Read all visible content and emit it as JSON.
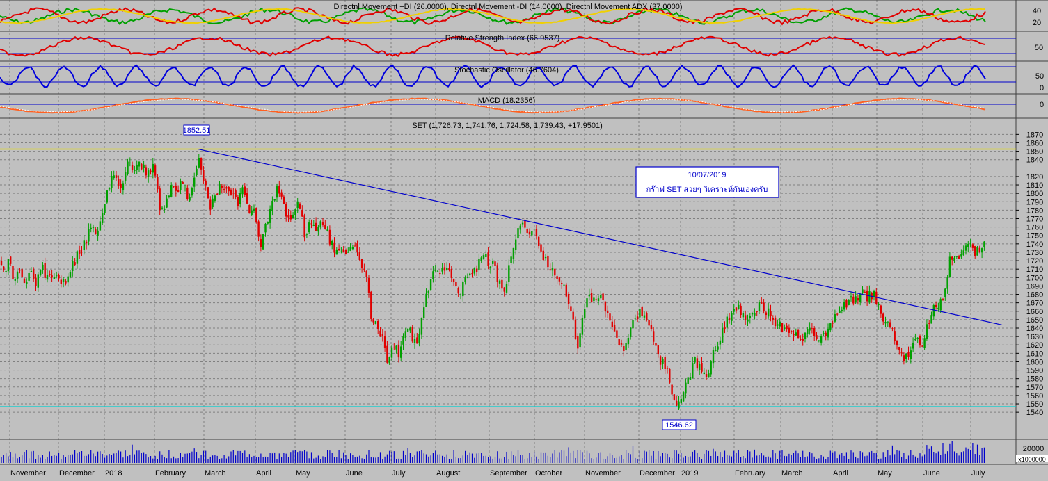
{
  "colors": {
    "background": "#c0c0c0",
    "grid": "#808080",
    "candle_up": "#00a000",
    "candle_down": "#e00000",
    "trendline": "#0000cc",
    "hline_yellow": "#e8e000",
    "hline_cyan": "#00d0d0",
    "plus_di": "#00a000",
    "minus_di": "#e00000",
    "adx": "#f0d000",
    "rsi": "#e00000",
    "stoch": "#0000dd",
    "macd": "#ff6020",
    "signal": "#ffffff",
    "volume": "#0000cc"
  },
  "panels": {
    "dmi": {
      "title": "Directnl Movement +DI (26.0000), Directnl Movement -DI (14.0000), Directnl Movement ADX (37.0000)",
      "ticks": [
        "40",
        "20"
      ]
    },
    "rsi": {
      "title": "Relative Strength Index (66.9537)",
      "ticks": [
        "50"
      ]
    },
    "stoch": {
      "title": "Stochastic Oscillator (46.7604)",
      "ticks": [
        "50",
        "0"
      ]
    },
    "macd": {
      "title": "MACD (18.2356)",
      "ticks": [
        "0"
      ]
    },
    "price": {
      "title": "SET (1,726.73, 1,741.76, 1,724.58, 1,739.43, +17.9501)"
    },
    "volume": {
      "ticks": [
        "20000"
      ],
      "unit": "x1000000"
    }
  },
  "labels": {
    "high": "1852.51",
    "low": "1546.62",
    "note_date": "10/07/2019",
    "note_text": "กร๊าฟ SET สวยๆ วิเคราะห์กันเองครับ"
  },
  "months": [
    "November",
    "December",
    "2018",
    "February",
    "March",
    "April",
    "May",
    "June",
    "July",
    "August",
    "September",
    "October",
    "November",
    "December",
    "2019",
    "February",
    "March",
    "April",
    "May",
    "June",
    "July"
  ],
  "chart_data": {
    "type": "candlestick",
    "title": "SET (1,726.73, 1,741.76, 1,724.58, 1,739.43, +17.9501)",
    "x_labels": [
      "November",
      "December",
      "2018",
      "February",
      "March",
      "April",
      "May",
      "June",
      "July",
      "August",
      "September",
      "October",
      "November",
      "December",
      "2019",
      "February",
      "March",
      "April",
      "May",
      "June",
      "July"
    ],
    "ylim": [
      1530,
      1880
    ],
    "y_ticks": [
      1540,
      1550,
      1560,
      1570,
      1580,
      1590,
      1600,
      1610,
      1620,
      1630,
      1640,
      1650,
      1660,
      1670,
      1680,
      1690,
      1700,
      1710,
      1720,
      1730,
      1740,
      1750,
      1760,
      1770,
      1780,
      1790,
      1800,
      1810,
      1820,
      1840,
      1850,
      1860,
      1870
    ],
    "last_bar": {
      "open": 1726.73,
      "high": 1741.76,
      "low": 1724.58,
      "close": 1739.43,
      "change": 17.9501
    },
    "high_label": 1852.51,
    "low_label": 1546.62,
    "horizontal_lines": [
      1852.51,
      1546.62
    ],
    "trendline": {
      "from": {
        "month": "February 2018",
        "value": 1852.51
      },
      "to": {
        "month": "July 2019",
        "value": 1652
      }
    },
    "close_path": [
      [
        0,
        1718
      ],
      [
        5,
        1705
      ],
      [
        12,
        1722
      ],
      [
        20,
        1700
      ],
      [
        28,
        1712
      ],
      [
        36,
        1690
      ],
      [
        44,
        1705
      ],
      [
        52,
        1695
      ],
      [
        60,
        1712
      ],
      [
        70,
        1698
      ],
      [
        80,
        1702
      ],
      [
        90,
        1690
      ],
      [
        100,
        1705
      ],
      [
        110,
        1725
      ],
      [
        120,
        1740
      ],
      [
        130,
        1755
      ],
      [
        140,
        1750
      ],
      [
        150,
        1790
      ],
      [
        158,
        1815
      ],
      [
        166,
        1820
      ],
      [
        174,
        1805
      ],
      [
        182,
        1835
      ],
      [
        190,
        1828
      ],
      [
        198,
        1840
      ],
      [
        206,
        1830
      ],
      [
        214,
        1825
      ],
      [
        222,
        1833
      ],
      [
        230,
        1780
      ],
      [
        238,
        1790
      ],
      [
        246,
        1810
      ],
      [
        254,
        1795
      ],
      [
        262,
        1815
      ],
      [
        270,
        1790
      ],
      [
        278,
        1815
      ],
      [
        286,
        1845
      ],
      [
        294,
        1815
      ],
      [
        302,
        1785
      ],
      [
        310,
        1795
      ],
      [
        318,
        1815
      ],
      [
        326,
        1800
      ],
      [
        334,
        1795
      ],
      [
        342,
        1790
      ],
      [
        350,
        1810
      ],
      [
        358,
        1770
      ],
      [
        366,
        1780
      ],
      [
        374,
        1735
      ],
      [
        382,
        1760
      ],
      [
        390,
        1785
      ],
      [
        398,
        1805
      ],
      [
        406,
        1790
      ],
      [
        414,
        1770
      ],
      [
        422,
        1780
      ],
      [
        430,
        1790
      ],
      [
        438,
        1750
      ],
      [
        446,
        1770
      ],
      [
        454,
        1760
      ],
      [
        462,
        1765
      ],
      [
        470,
        1755
      ],
      [
        478,
        1735
      ],
      [
        486,
        1730
      ],
      [
        494,
        1725
      ],
      [
        502,
        1740
      ],
      [
        510,
        1735
      ],
      [
        518,
        1715
      ],
      [
        526,
        1700
      ],
      [
        534,
        1650
      ],
      [
        542,
        1640
      ],
      [
        550,
        1625
      ],
      [
        558,
        1600
      ],
      [
        566,
        1620
      ],
      [
        574,
        1610
      ],
      [
        582,
        1630
      ],
      [
        590,
        1635
      ],
      [
        598,
        1620
      ],
      [
        606,
        1650
      ],
      [
        614,
        1680
      ],
      [
        622,
        1700
      ],
      [
        630,
        1710
      ],
      [
        638,
        1715
      ],
      [
        646,
        1705
      ],
      [
        654,
        1690
      ],
      [
        662,
        1680
      ],
      [
        670,
        1710
      ],
      [
        678,
        1700
      ],
      [
        686,
        1715
      ],
      [
        694,
        1725
      ],
      [
        702,
        1720
      ],
      [
        710,
        1715
      ],
      [
        718,
        1690
      ],
      [
        726,
        1685
      ],
      [
        734,
        1725
      ],
      [
        742,
        1750
      ],
      [
        750,
        1760
      ],
      [
        758,
        1755
      ],
      [
        766,
        1760
      ],
      [
        774,
        1740
      ],
      [
        782,
        1725
      ],
      [
        790,
        1715
      ],
      [
        798,
        1700
      ],
      [
        806,
        1695
      ],
      [
        814,
        1680
      ],
      [
        822,
        1650
      ],
      [
        830,
        1620
      ],
      [
        838,
        1660
      ],
      [
        846,
        1680
      ],
      [
        854,
        1670
      ],
      [
        862,
        1680
      ],
      [
        870,
        1660
      ],
      [
        878,
        1650
      ],
      [
        886,
        1630
      ],
      [
        894,
        1615
      ],
      [
        902,
        1630
      ],
      [
        910,
        1645
      ],
      [
        918,
        1660
      ],
      [
        926,
        1650
      ],
      [
        934,
        1640
      ],
      [
        942,
        1620
      ],
      [
        950,
        1600
      ],
      [
        958,
        1590
      ],
      [
        966,
        1560
      ],
      [
        974,
        1552
      ],
      [
        982,
        1570
      ],
      [
        990,
        1580
      ],
      [
        998,
        1600
      ],
      [
        1006,
        1590
      ],
      [
        1014,
        1580
      ],
      [
        1022,
        1600
      ],
      [
        1030,
        1620
      ],
      [
        1038,
        1635
      ],
      [
        1046,
        1650
      ],
      [
        1054,
        1660
      ],
      [
        1062,
        1665
      ],
      [
        1070,
        1650
      ],
      [
        1078,
        1660
      ],
      [
        1086,
        1665
      ],
      [
        1094,
        1665
      ],
      [
        1102,
        1660
      ],
      [
        1110,
        1650
      ],
      [
        1118,
        1645
      ],
      [
        1126,
        1640
      ],
      [
        1134,
        1635
      ],
      [
        1142,
        1630
      ],
      [
        1150,
        1628
      ],
      [
        1158,
        1635
      ],
      [
        1166,
        1640
      ],
      [
        1174,
        1630
      ],
      [
        1182,
        1630
      ],
      [
        1190,
        1640
      ],
      [
        1198,
        1655
      ],
      [
        1206,
        1660
      ],
      [
        1214,
        1665
      ],
      [
        1222,
        1670
      ],
      [
        1230,
        1678
      ],
      [
        1238,
        1680
      ],
      [
        1246,
        1675
      ],
      [
        1254,
        1680
      ],
      [
        1262,
        1670
      ],
      [
        1270,
        1650
      ],
      [
        1278,
        1640
      ],
      [
        1286,
        1625
      ],
      [
        1294,
        1610
      ],
      [
        1302,
        1605
      ],
      [
        1310,
        1620
      ],
      [
        1318,
        1630
      ],
      [
        1326,
        1615
      ],
      [
        1334,
        1650
      ],
      [
        1342,
        1665
      ],
      [
        1350,
        1670
      ],
      [
        1358,
        1680
      ],
      [
        1366,
        1730
      ],
      [
        1374,
        1720
      ],
      [
        1382,
        1725
      ],
      [
        1390,
        1738
      ],
      [
        1398,
        1735
      ],
      [
        1406,
        1728
      ],
      [
        1414,
        1739.43
      ]
    ]
  }
}
